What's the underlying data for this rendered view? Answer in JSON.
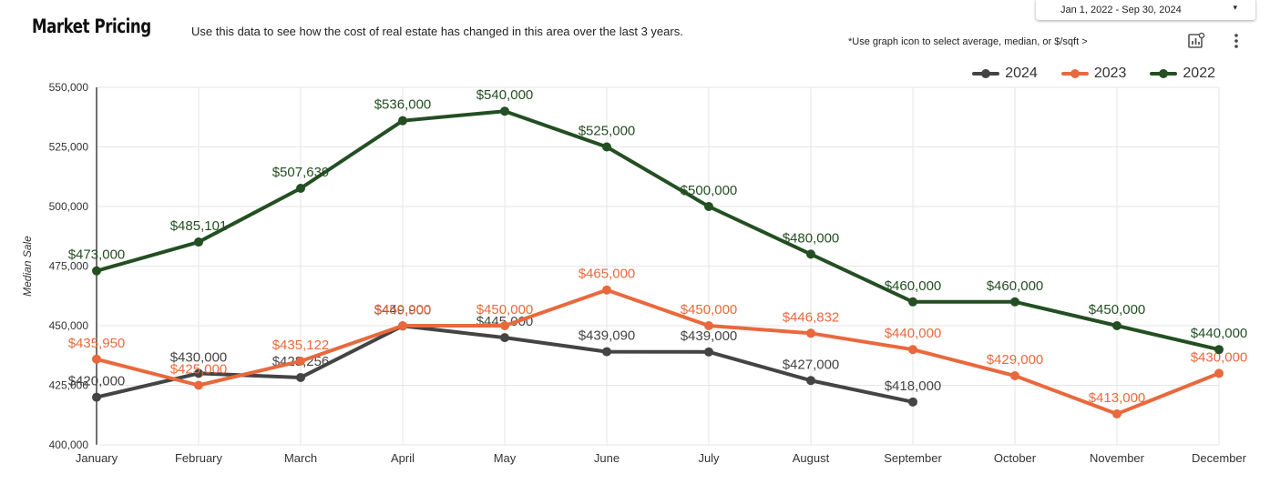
{
  "header": {
    "title": "Market Pricing",
    "subtitle": "Use this data to see how the cost of real estate has changed in this area over the last 3 years.",
    "note": "*Use graph icon to  select average, median, or $/sqft >",
    "date_range": "Jan 1, 2022 - Sep 30, 2024",
    "icons": {
      "chart_settings": "chart-settings-icon",
      "more": "more-vertical-icon",
      "caret": "caret-down-icon"
    }
  },
  "colors": {
    "2024": "#444444",
    "2023": "#E8693D",
    "2022": "#234F22",
    "grid": "#e6e6e6",
    "axis": "#222222"
  },
  "chart_data": {
    "type": "line",
    "title": "",
    "xlabel": "",
    "ylabel": "Median Sale",
    "ylim": [
      400000,
      550000
    ],
    "y_ticks": [
      400000,
      425000,
      450000,
      475000,
      500000,
      525000,
      550000
    ],
    "y_tick_labels": [
      "400,000",
      "425,000",
      "450,000",
      "475,000",
      "500,000",
      "525,000",
      "550,000"
    ],
    "grid": true,
    "legend_position": "top-right",
    "categories": [
      "January",
      "February",
      "March",
      "April",
      "May",
      "June",
      "July",
      "August",
      "September",
      "October",
      "November",
      "December"
    ],
    "series": [
      {
        "name": "2024",
        "values": [
          420000,
          430000,
          428256,
          449900,
          445000,
          439090,
          439000,
          427000,
          418000,
          null,
          null,
          null
        ],
        "labels": [
          "$420,000",
          "$430,000",
          "$428,256",
          "$449,900",
          "$445,000",
          "$439,090",
          "$439,000",
          "$427,000",
          "$418,000",
          null,
          null,
          null
        ]
      },
      {
        "name": "2023",
        "values": [
          435950,
          425000,
          435122,
          450000,
          450000,
          465000,
          450000,
          446832,
          440000,
          429000,
          413000,
          430000
        ],
        "labels": [
          "$435,950",
          "$425,000",
          "$435,122",
          "$450,000",
          "$450,000",
          "$465,000",
          "$450,000",
          "$446,832",
          "$440,000",
          "$429,000",
          "$413,000",
          "$430,000"
        ]
      },
      {
        "name": "2022",
        "values": [
          473000,
          485101,
          507639,
          536000,
          540000,
          525000,
          500000,
          480000,
          460000,
          460000,
          450000,
          440000
        ],
        "labels": [
          "$473,000",
          "$485,101",
          "$507,639",
          "$536,000",
          "$540,000",
          "$525,000",
          "$500,000",
          "$480,000",
          "$460,000",
          "$460,000",
          "$450,000",
          "$440,000"
        ]
      }
    ]
  }
}
